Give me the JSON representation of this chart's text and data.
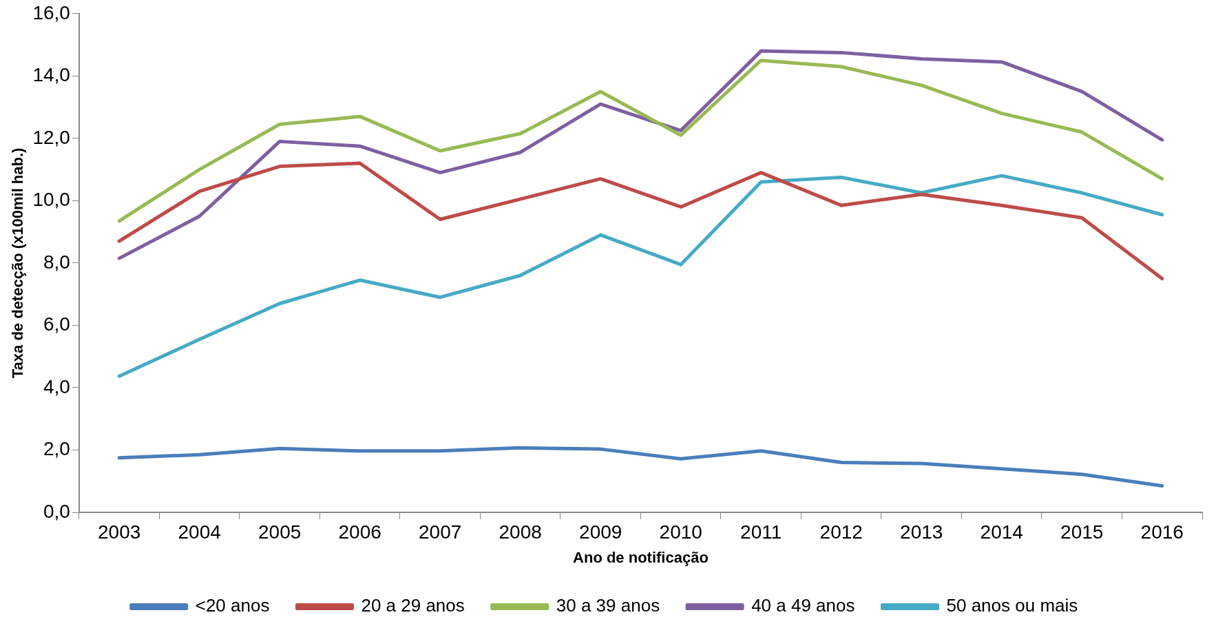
{
  "chart_data": {
    "type": "line",
    "xlabel": "Ano de notificação",
    "ylabel": "Taxa de detecção (x100mil hab.)",
    "categories": [
      "2003",
      "2004",
      "2005",
      "2006",
      "2007",
      "2008",
      "2009",
      "2010",
      "2011",
      "2012",
      "2013",
      "2014",
      "2015",
      "2016"
    ],
    "ylim": [
      0,
      16
    ],
    "yticks": [
      {
        "value": 0,
        "label": "0,0"
      },
      {
        "value": 2,
        "label": "2,0"
      },
      {
        "value": 4,
        "label": "4,0"
      },
      {
        "value": 6,
        "label": "6,0"
      },
      {
        "value": 8,
        "label": "8,0"
      },
      {
        "value": 10,
        "label": "10,0"
      },
      {
        "value": 12,
        "label": "12,0"
      },
      {
        "value": 14,
        "label": "14,0"
      },
      {
        "value": 16,
        "label": "16,0"
      }
    ],
    "grid": false,
    "legend": "bottom",
    "marker": "none",
    "line_style": "solid",
    "series": [
      {
        "name": "<20 anos",
        "color": "#4a7ebb",
        "values": [
          1.75,
          1.85,
          2.05,
          1.97,
          1.97,
          2.07,
          2.03,
          1.72,
          1.97,
          1.6,
          1.57,
          1.4,
          1.22,
          0.85
        ]
      },
      {
        "name": "20 a 29 anos",
        "color": "#be4b48",
        "values": [
          8.7,
          10.3,
          11.1,
          11.2,
          9.4,
          10.05,
          10.7,
          9.8,
          10.9,
          9.85,
          10.2,
          9.85,
          9.45,
          7.5
        ]
      },
      {
        "name": "30 a 39 anos",
        "color": "#98b954",
        "values": [
          9.35,
          11.0,
          12.45,
          12.7,
          11.6,
          12.15,
          13.5,
          12.1,
          14.5,
          14.3,
          13.7,
          12.8,
          12.2,
          10.7
        ]
      },
      {
        "name": "40 a 49 anos",
        "color": "#7d60a0",
        "values": [
          8.15,
          9.5,
          11.9,
          11.75,
          10.9,
          11.55,
          13.1,
          12.25,
          14.8,
          14.75,
          14.55,
          14.45,
          13.5,
          11.95
        ]
      },
      {
        "name": "50 anos ou mais",
        "color": "#46aac5",
        "values": [
          4.37,
          5.55,
          6.7,
          7.45,
          6.9,
          7.6,
          8.9,
          7.95,
          10.6,
          10.75,
          10.25,
          10.8,
          10.25,
          9.55
        ]
      }
    ]
  }
}
